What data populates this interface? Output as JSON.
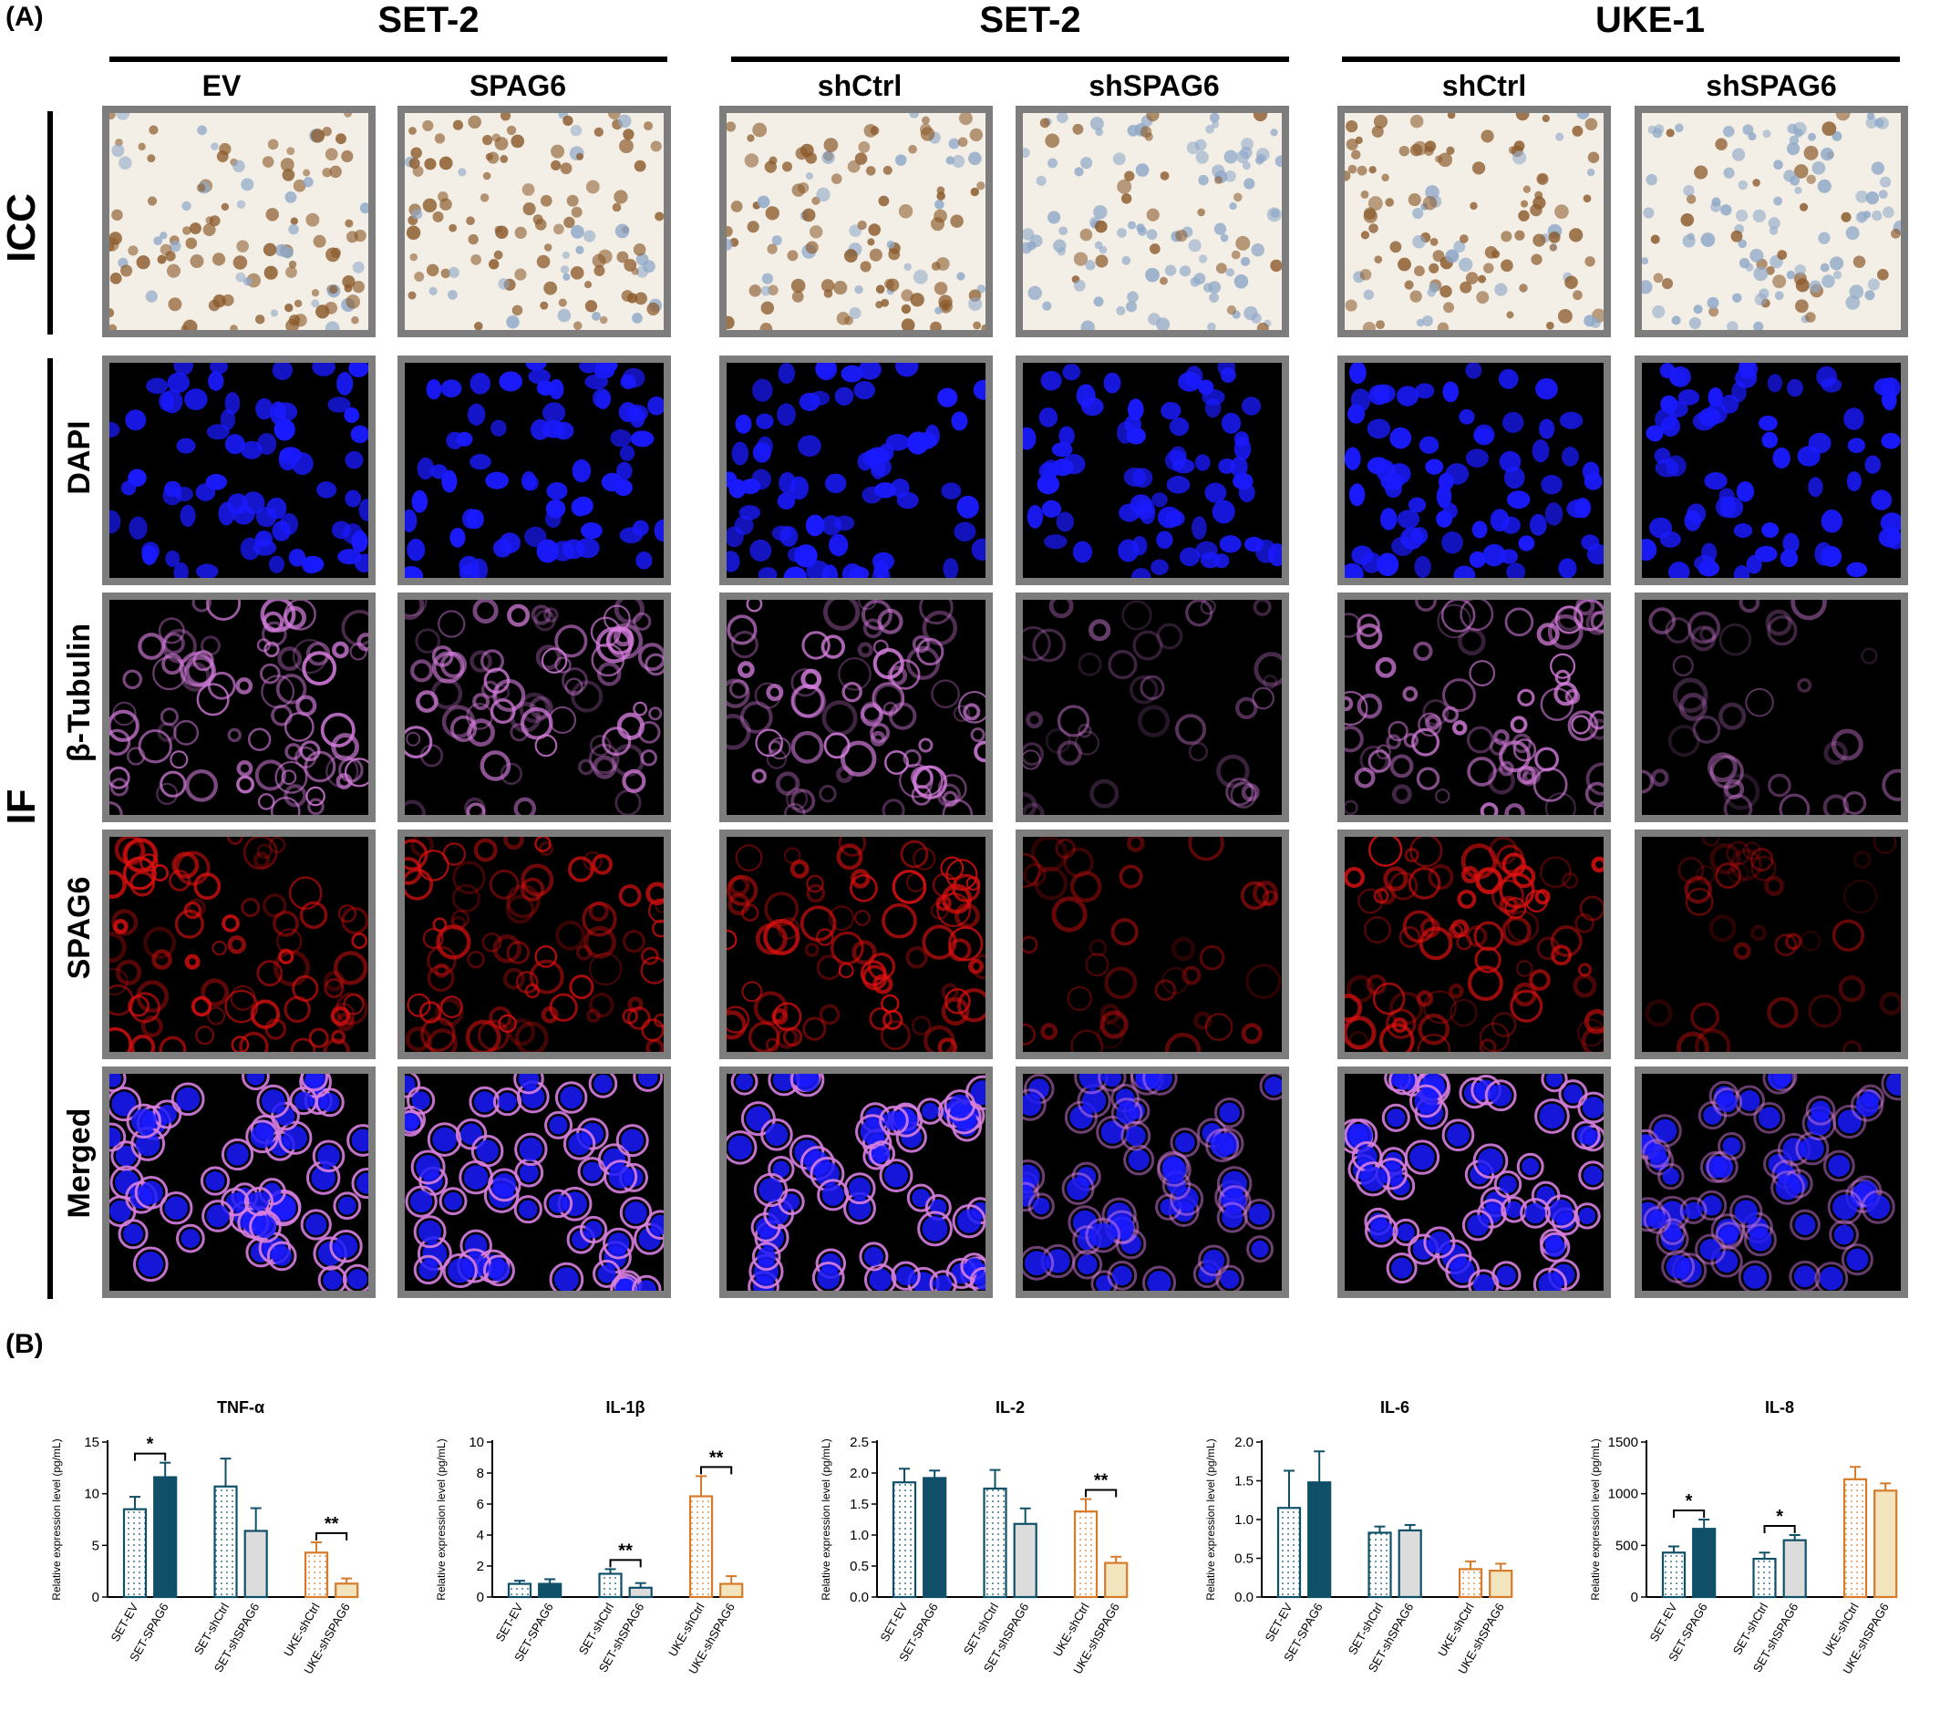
{
  "panel_a": {
    "label": "(A)",
    "groups": [
      {
        "title": "SET-2",
        "columns": [
          "EV",
          "SPAG6"
        ]
      },
      {
        "title": "SET-2",
        "columns": [
          "shCtrl",
          "shSPAG6"
        ]
      },
      {
        "title": "UKE-1",
        "columns": [
          "shCtrl",
          "shSPAG6"
        ]
      }
    ],
    "row_groups": {
      "icc": "ICC",
      "if": "IF"
    },
    "if_rows": [
      "DAPI",
      "β-Tubulin",
      "SPAG6",
      "Merged"
    ]
  },
  "panel_b": {
    "label": "(B)"
  },
  "colors": {
    "set_accent": "#0f5068",
    "set_light": "#dcdcdc",
    "uke_accent": "#d77a2a",
    "uke_light": "#f2e4bd",
    "dapi": "#1a1aff",
    "tubulin": "#d87ee0",
    "spag6": "#e01010",
    "icc_bg": "#f3efe6",
    "icc_brown": "#8b5a2b",
    "icc_blue": "#8fa8c8",
    "tile_border": "#7d7d7d"
  },
  "chart_data": [
    {
      "type": "bar",
      "title": "TNF-α",
      "ylabel": "Relative expression level (pg/mL)",
      "ylim": [
        0,
        15
      ],
      "yticks": [
        0,
        5,
        10,
        15
      ],
      "categories": [
        "SET-EV",
        "SET-SPAG6",
        "SET-shCtrl",
        "SET-shSPAG6",
        "UKE-shCtrl",
        "UKE-shSPAG6"
      ],
      "values": [
        8.5,
        11.6,
        10.7,
        6.4,
        4.3,
        1.3
      ],
      "errors": [
        1.2,
        1.4,
        2.7,
        2.2,
        1.0,
        0.5
      ],
      "significance": [
        {
          "pair": [
            0,
            1
          ],
          "label": "*"
        },
        {
          "pair": [
            4,
            5
          ],
          "label": "**"
        }
      ]
    },
    {
      "type": "bar",
      "title": "IL-1β",
      "ylabel": "Relative expression level (pg/mL)",
      "ylim": [
        0,
        10
      ],
      "yticks": [
        0,
        2,
        4,
        6,
        8,
        10
      ],
      "categories": [
        "SET-EV",
        "SET-SPAG6",
        "SET-shCtrl",
        "SET-shSPAG6",
        "UKE-shCtrl",
        "UKE-shSPAG6"
      ],
      "values": [
        0.85,
        0.85,
        1.5,
        0.6,
        6.5,
        0.85
      ],
      "errors": [
        0.2,
        0.3,
        0.3,
        0.3,
        1.3,
        0.5
      ],
      "significance": [
        {
          "pair": [
            2,
            3
          ],
          "label": "**"
        },
        {
          "pair": [
            4,
            5
          ],
          "label": "**"
        }
      ]
    },
    {
      "type": "bar",
      "title": "IL-2",
      "ylabel": "Relative expression level (pg/mL)",
      "ylim": [
        0,
        2.5
      ],
      "yticks": [
        0.0,
        0.5,
        1.0,
        1.5,
        2.0,
        2.5
      ],
      "categories": [
        "SET-EV",
        "SET-SPAG6",
        "SET-shCtrl",
        "SET-shSPAG6",
        "UKE-shCtrl",
        "UKE-shSPAG6"
      ],
      "values": [
        1.85,
        1.92,
        1.75,
        1.18,
        1.38,
        0.55
      ],
      "errors": [
        0.22,
        0.12,
        0.3,
        0.25,
        0.2,
        0.1
      ],
      "significance": [
        {
          "pair": [
            4,
            5
          ],
          "label": "**"
        }
      ]
    },
    {
      "type": "bar",
      "title": "IL-6",
      "ylabel": "Relative expression level (pg/mL)",
      "ylim": [
        0,
        2.0
      ],
      "yticks": [
        0.0,
        0.5,
        1.0,
        1.5,
        2.0
      ],
      "categories": [
        "SET-EV",
        "SET-SPAG6",
        "SET-shCtrl",
        "SET-shSPAG6",
        "UKE-shCtrl",
        "UKE-shSPAG6"
      ],
      "values": [
        1.15,
        1.48,
        0.83,
        0.86,
        0.36,
        0.34
      ],
      "errors": [
        0.48,
        0.4,
        0.08,
        0.07,
        0.1,
        0.09
      ],
      "significance": []
    },
    {
      "type": "bar",
      "title": "IL-8",
      "ylabel": "Relative expression level (pg/mL)",
      "ylim": [
        0,
        1500
      ],
      "yticks": [
        0,
        500,
        1000,
        1500
      ],
      "categories": [
        "SET-EV",
        "SET-SPAG6",
        "SET-shCtrl",
        "SET-shSPAG6",
        "UKE-shCtrl",
        "UKE-shSPAG6"
      ],
      "values": [
        430,
        660,
        370,
        550,
        1140,
        1030
      ],
      "errors": [
        60,
        90,
        60,
        50,
        120,
        70
      ],
      "significance": [
        {
          "pair": [
            0,
            1
          ],
          "label": "*"
        },
        {
          "pair": [
            2,
            3
          ],
          "label": "*"
        }
      ]
    }
  ]
}
